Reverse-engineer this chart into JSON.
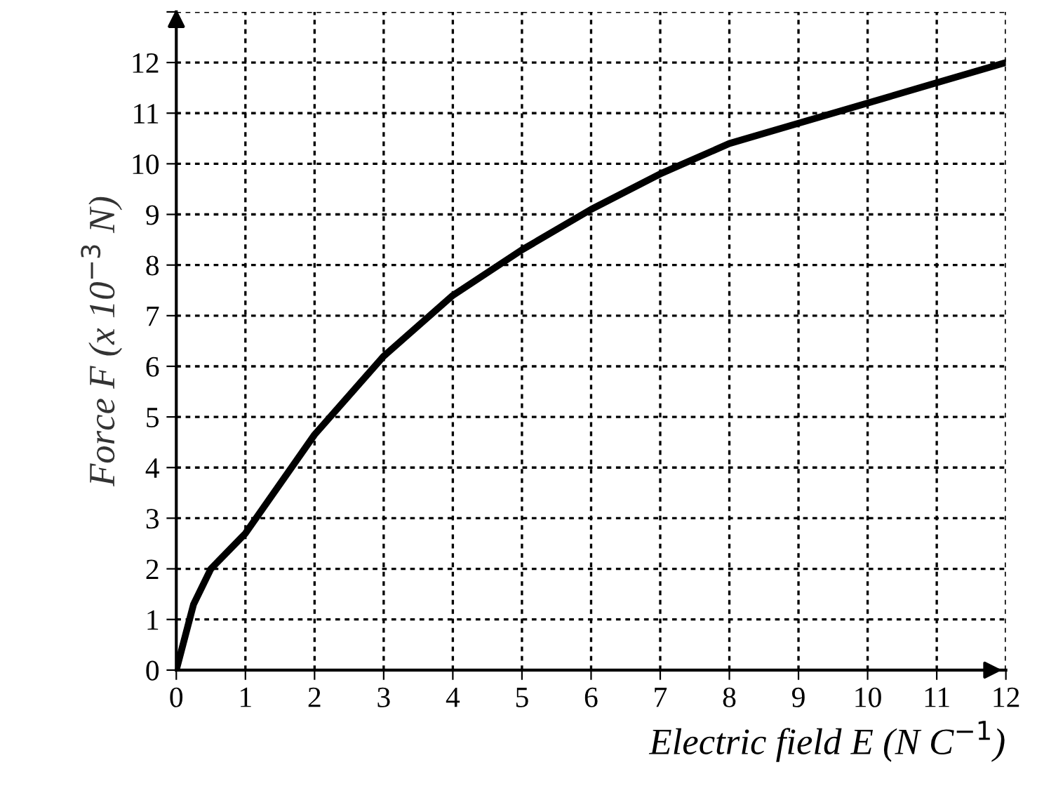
{
  "chart_data": {
    "type": "line",
    "xlabel": "Electric field E (N C$^{−1}$)",
    "ylabel": "Force F (x 10$^{−3}$ N)",
    "series": [
      {
        "color": "#000000",
        "x": [
          0,
          0.25,
          0.5,
          1,
          2,
          3,
          4,
          5,
          6,
          7,
          8,
          9,
          10,
          11,
          12
        ],
        "values": [
          0,
          1.3,
          2.0,
          2.7,
          4.65,
          6.2,
          7.4,
          8.3,
          9.1,
          9.8,
          10.4,
          10.8,
          11.2,
          11.6,
          12
        ]
      }
    ],
    "xlim": [
      0,
      12
    ],
    "ylim": [
      0,
      13
    ],
    "xticks": [
      0,
      1,
      2,
      3,
      4,
      5,
      6,
      7,
      8,
      9,
      10,
      11,
      12
    ],
    "yticks": [
      0,
      1,
      2,
      3,
      4,
      5,
      6,
      7,
      8,
      9,
      10,
      11,
      12,
      {
        "value": 13,
        "label": null
      }
    ],
    "grid": true,
    "line_style": "solid",
    "marker": "none"
  }
}
